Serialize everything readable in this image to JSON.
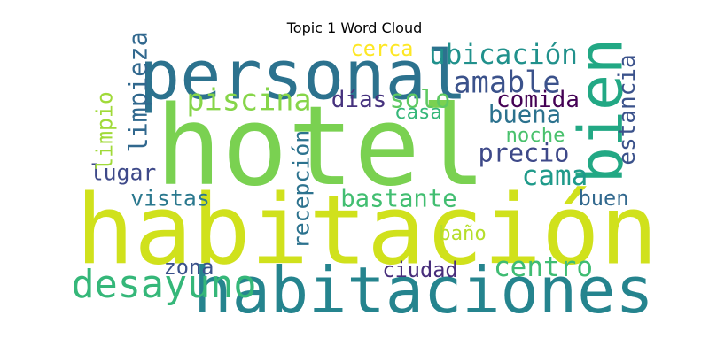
{
  "chart_data": {
    "type": "wordcloud",
    "title": "Topic 1 Word Cloud",
    "words": [
      {
        "text": "hotel",
        "weight": 1.0,
        "color": "#7ad151",
        "orientation": "horizontal"
      },
      {
        "text": "habitación",
        "weight": 0.88,
        "color": "#d0e11c",
        "orientation": "horizontal"
      },
      {
        "text": "personal",
        "weight": 0.62,
        "color": "#2c728e",
        "orientation": "horizontal"
      },
      {
        "text": "habitaciones",
        "weight": 0.58,
        "color": "#25848e",
        "orientation": "horizontal"
      },
      {
        "text": "bien",
        "weight": 0.55,
        "color": "#22a884",
        "orientation": "vertical"
      },
      {
        "text": "desayuno",
        "weight": 0.35,
        "color": "#35b779",
        "orientation": "horizontal"
      },
      {
        "text": "amable",
        "weight": 0.27,
        "color": "#3b528b",
        "orientation": "horizontal"
      },
      {
        "text": "piscina",
        "weight": 0.27,
        "color": "#86d549",
        "orientation": "horizontal"
      },
      {
        "text": "ubicación",
        "weight": 0.25,
        "color": "#21918c",
        "orientation": "horizontal"
      },
      {
        "text": "centro",
        "weight": 0.25,
        "color": "#3fbc73",
        "orientation": "horizontal"
      },
      {
        "text": "cama",
        "weight": 0.25,
        "color": "#1f9a8a",
        "orientation": "horizontal"
      },
      {
        "text": "solo",
        "weight": 0.23,
        "color": "#5ec962",
        "orientation": "horizontal"
      },
      {
        "text": "precio",
        "weight": 0.23,
        "color": "#3e4989",
        "orientation": "horizontal"
      },
      {
        "text": "limpieza",
        "weight": 0.23,
        "color": "#31688e",
        "orientation": "vertical"
      },
      {
        "text": "buena",
        "weight": 0.22,
        "color": "#2c728e",
        "orientation": "horizontal"
      },
      {
        "text": "bastante",
        "weight": 0.22,
        "color": "#42be71",
        "orientation": "horizontal"
      },
      {
        "text": "días",
        "weight": 0.21,
        "color": "#46327e",
        "orientation": "horizontal"
      },
      {
        "text": "comida",
        "weight": 0.21,
        "color": "#440154",
        "orientation": "horizontal"
      },
      {
        "text": "estancia",
        "weight": 0.21,
        "color": "#3b528b",
        "orientation": "vertical"
      },
      {
        "text": "lugar",
        "weight": 0.2,
        "color": "#3e4989",
        "orientation": "horizontal"
      },
      {
        "text": "vistas",
        "weight": 0.2,
        "color": "#2a788e",
        "orientation": "horizontal"
      },
      {
        "text": "recepción",
        "weight": 0.2,
        "color": "#2c728e",
        "orientation": "vertical"
      },
      {
        "text": "limpio",
        "weight": 0.2,
        "color": "#a0da39",
        "orientation": "vertical"
      },
      {
        "text": "cerca",
        "weight": 0.19,
        "color": "#fde725",
        "orientation": "horizontal"
      },
      {
        "text": "ciudad",
        "weight": 0.19,
        "color": "#472d7b",
        "orientation": "horizontal"
      },
      {
        "text": "buen",
        "weight": 0.19,
        "color": "#31688e",
        "orientation": "horizontal"
      },
      {
        "text": "zona",
        "weight": 0.19,
        "color": "#3b528b",
        "orientation": "horizontal"
      },
      {
        "text": "casa",
        "weight": 0.18,
        "color": "#35b779",
        "orientation": "horizontal"
      },
      {
        "text": "noche",
        "weight": 0.18,
        "color": "#4ac16d",
        "orientation": "horizontal"
      },
      {
        "text": "baño",
        "weight": 0.18,
        "color": "#b5de2b",
        "orientation": "horizontal"
      }
    ]
  }
}
